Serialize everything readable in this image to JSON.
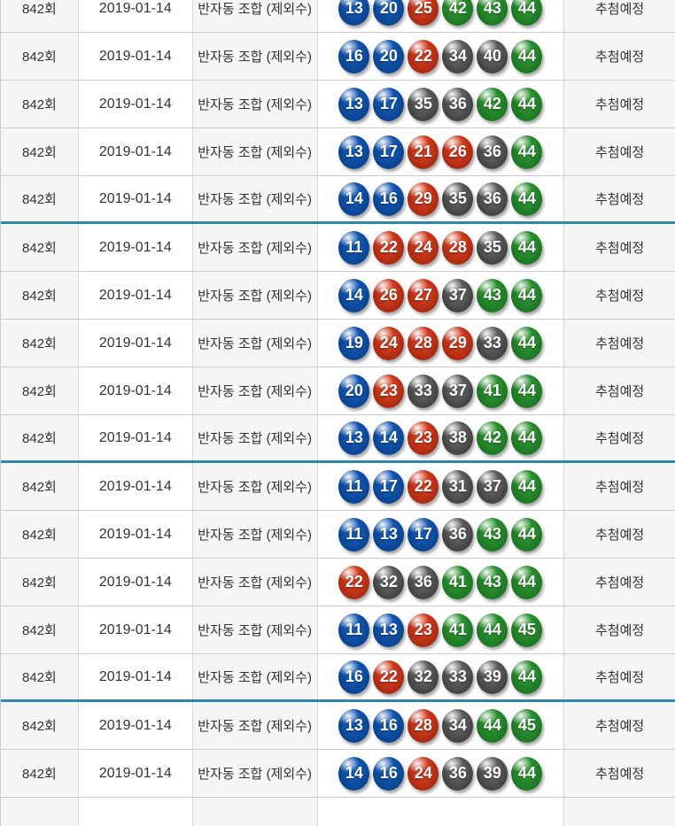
{
  "table": {
    "group_size": 5,
    "shared": {
      "round": "842회",
      "date": "2019-01-14",
      "type": "반자동 조합 (제외수)",
      "status": "추첨예정"
    },
    "rows": [
      {
        "round": "842회",
        "date": "2019-01-14",
        "type": "반자동 조합 (제외수)",
        "numbers": [
          13,
          20,
          25,
          42,
          43,
          44
        ],
        "status": "추첨예정"
      },
      {
        "round": "842회",
        "date": "2019-01-14",
        "type": "반자동 조합 (제외수)",
        "numbers": [
          16,
          20,
          22,
          34,
          40,
          44
        ],
        "status": "추첨예정"
      },
      {
        "round": "842회",
        "date": "2019-01-14",
        "type": "반자동 조합 (제외수)",
        "numbers": [
          13,
          17,
          35,
          36,
          42,
          44
        ],
        "status": "추첨예정"
      },
      {
        "round": "842회",
        "date": "2019-01-14",
        "type": "반자동 조합 (제외수)",
        "numbers": [
          13,
          17,
          21,
          26,
          36,
          44
        ],
        "status": "추첨예정"
      },
      {
        "round": "842회",
        "date": "2019-01-14",
        "type": "반자동 조합 (제외수)",
        "numbers": [
          14,
          16,
          29,
          35,
          36,
          44
        ],
        "status": "추첨예정"
      },
      {
        "round": "842회",
        "date": "2019-01-14",
        "type": "반자동 조합 (제외수)",
        "numbers": [
          11,
          22,
          24,
          28,
          35,
          44
        ],
        "status": "추첨예정"
      },
      {
        "round": "842회",
        "date": "2019-01-14",
        "type": "반자동 조합 (제외수)",
        "numbers": [
          14,
          26,
          27,
          37,
          43,
          44
        ],
        "status": "추첨예정"
      },
      {
        "round": "842회",
        "date": "2019-01-14",
        "type": "반자동 조합 (제외수)",
        "numbers": [
          19,
          24,
          28,
          29,
          33,
          44
        ],
        "status": "추첨예정"
      },
      {
        "round": "842회",
        "date": "2019-01-14",
        "type": "반자동 조합 (제외수)",
        "numbers": [
          20,
          23,
          33,
          37,
          41,
          44
        ],
        "status": "추첨예정"
      },
      {
        "round": "842회",
        "date": "2019-01-14",
        "type": "반자동 조합 (제외수)",
        "numbers": [
          13,
          14,
          23,
          38,
          42,
          44
        ],
        "status": "추첨예정"
      },
      {
        "round": "842회",
        "date": "2019-01-14",
        "type": "반자동 조합 (제외수)",
        "numbers": [
          11,
          17,
          22,
          31,
          37,
          44
        ],
        "status": "추첨예정"
      },
      {
        "round": "842회",
        "date": "2019-01-14",
        "type": "반자동 조합 (제외수)",
        "numbers": [
          11,
          13,
          17,
          36,
          43,
          44
        ],
        "status": "추첨예정"
      },
      {
        "round": "842회",
        "date": "2019-01-14",
        "type": "반자동 조합 (제외수)",
        "numbers": [
          22,
          32,
          36,
          41,
          43,
          44
        ],
        "status": "추첨예정"
      },
      {
        "round": "842회",
        "date": "2019-01-14",
        "type": "반자동 조합 (제외수)",
        "numbers": [
          11,
          13,
          23,
          41,
          44,
          45
        ],
        "status": "추첨예정"
      },
      {
        "round": "842회",
        "date": "2019-01-14",
        "type": "반자동 조합 (제외수)",
        "numbers": [
          16,
          22,
          32,
          33,
          39,
          44
        ],
        "status": "추첨예정"
      },
      {
        "round": "842회",
        "date": "2019-01-14",
        "type": "반자동 조합 (제외수)",
        "numbers": [
          13,
          16,
          28,
          34,
          44,
          45
        ],
        "status": "추첨예정"
      },
      {
        "round": "842회",
        "date": "2019-01-14",
        "type": "반자동 조합 (제외수)",
        "numbers": [
          14,
          16,
          24,
          36,
          39,
          44
        ],
        "status": "추첨예정"
      }
    ]
  },
  "ball_color_ranges": {
    "blue_11_20": "#1256b0",
    "red_21_30": "#d23b1e",
    "gray_31_40": "#606060",
    "green_41_45": "#2b9130"
  },
  "colors": {
    "accent_divider": "#2d87a5",
    "row_border": "#cccccc",
    "cell_border": "#d8d8d8",
    "cell_bg_shaded": "#f5f5f5",
    "cell_bg_white": "#ffffff",
    "ball_blue": "#1256b0",
    "ball_blue_dark": "#083a80",
    "ball_red": "#d23b1e",
    "ball_red_dark": "#93210c",
    "ball_gray": "#606060",
    "ball_gray_dark": "#333333",
    "ball_green": "#2b9130",
    "ball_green_dark": "#15691d",
    "ball_text": "#ffffff",
    "text": "#333333"
  }
}
